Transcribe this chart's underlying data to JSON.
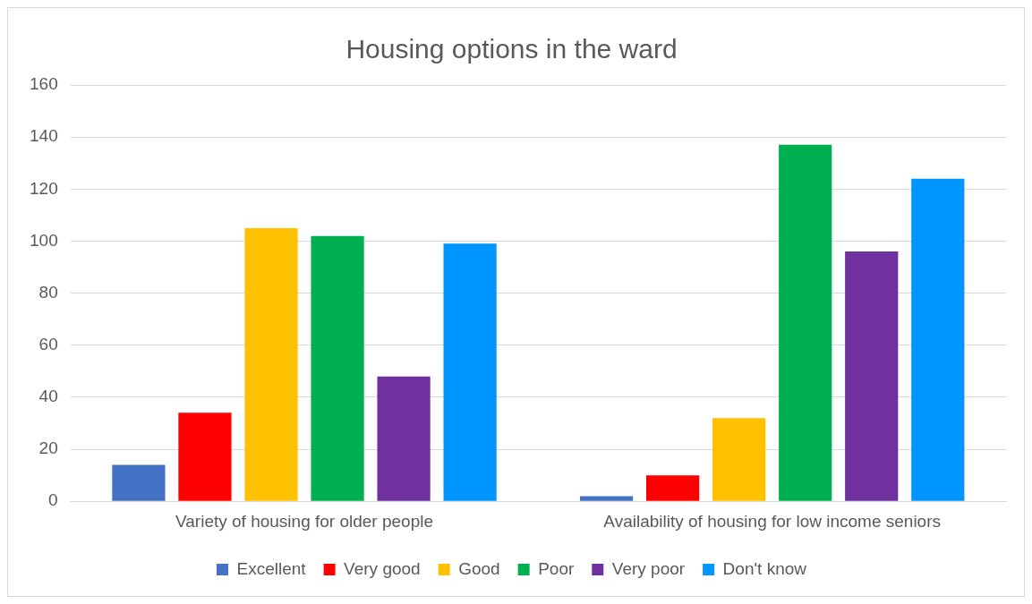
{
  "chart_data": {
    "type": "bar",
    "title": "Housing options in the ward",
    "categories": [
      "Variety of housing for older people",
      "Availability of housing for low income seniors"
    ],
    "series": [
      {
        "name": "Excellent",
        "color": "#4472c4",
        "values": [
          14,
          2
        ]
      },
      {
        "name": "Very good",
        "color": "#ff0000",
        "values": [
          34,
          10
        ]
      },
      {
        "name": "Good",
        "color": "#ffc000",
        "values": [
          105,
          32
        ]
      },
      {
        "name": "Poor",
        "color": "#00b050",
        "values": [
          102,
          137
        ]
      },
      {
        "name": "Very poor",
        "color": "#7030a0",
        "values": [
          48,
          96
        ]
      },
      {
        "name": "Don't know",
        "color": "#0096ff",
        "values": [
          99,
          124
        ]
      }
    ],
    "ylim": [
      0,
      160
    ],
    "yticks": [
      0,
      20,
      40,
      60,
      80,
      100,
      120,
      140,
      160
    ],
    "grid": "y",
    "legend": "bottom"
  }
}
